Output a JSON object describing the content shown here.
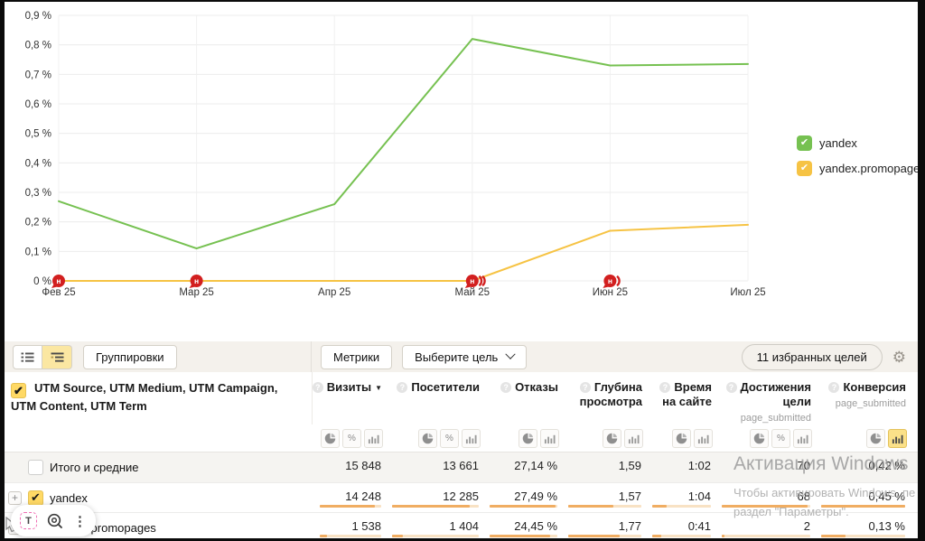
{
  "chart_data": {
    "type": "line",
    "x_labels": [
      "Фев 25",
      "Мар 25",
      "Апр 25",
      "Май 25",
      "Июн 25",
      "Июл 25"
    ],
    "y_ticks": [
      "0,9 %",
      "0,8 %",
      "0,7 %",
      "0,6 %",
      "0,5 %",
      "0,4 %",
      "0,3 %",
      "0,2 %",
      "0,1 %",
      "0 %"
    ],
    "ylim": [
      0,
      0.9
    ],
    "unit": "%",
    "grid": true,
    "legend_position": "right",
    "series": [
      {
        "name": "yandex",
        "color": "#76c151",
        "values": [
          0.27,
          0.11,
          0.26,
          0.82,
          0.73,
          0.735
        ]
      },
      {
        "name": "yandex.promopages",
        "color": "#f6c344",
        "values": [
          0,
          0,
          0,
          0,
          0.17,
          0.19
        ]
      }
    ],
    "annotation_glyph": "н",
    "annotation_color": "#d21f1f",
    "annotations": [
      {
        "x_label": "Фев 25",
        "x_index": 0,
        "bubbles": 1
      },
      {
        "x_label": "Мар 25",
        "x_index": 1,
        "bubbles": 1
      },
      {
        "x_label": "Май 25",
        "x_index": 3,
        "bubbles": 3
      },
      {
        "x_label": "Июн 25",
        "x_index": 4,
        "bubbles": 2
      }
    ]
  },
  "toolbar": {
    "groupings": "Группировки",
    "metrics": "Метрики",
    "goal_select": "Выберите цель",
    "favorite_goals": "11 избранных целей"
  },
  "table": {
    "row_header": "UTM Source, UTM Medium, UTM Campaign, UTM Content, UTM Term",
    "columns": [
      {
        "title": "Визиты",
        "sorted": "desc",
        "icons": [
          "pie",
          "percent",
          "bars"
        ]
      },
      {
        "title": "Посетители",
        "icons": [
          "pie",
          "percent",
          "bars"
        ]
      },
      {
        "title": "Отказы",
        "icons": [
          "pie",
          "bars"
        ]
      },
      {
        "title": "Глубина просмотра",
        "icons": [
          "pie",
          "bars"
        ]
      },
      {
        "title": "Время на сайте",
        "icons": [
          "pie",
          "bars"
        ]
      },
      {
        "title": "Достижения цели",
        "sub": "page_submitted",
        "icons": [
          "pie",
          "percent",
          "bars"
        ]
      },
      {
        "title": "Конверсия",
        "sub": "page_submitted",
        "icons": [
          "pie",
          "bars"
        ],
        "active_icon": "bars"
      }
    ],
    "rows": [
      {
        "label": "Итого и средние",
        "checked": false,
        "expandable": false,
        "total": true,
        "values": [
          "15 848",
          "13 661",
          "27,14 %",
          "1,59",
          "1:02",
          "70",
          "0,42 %"
        ],
        "bar_fill": null
      },
      {
        "label": "yandex",
        "checked": true,
        "expandable": true,
        "total": false,
        "values": [
          "14 248",
          "12 285",
          "27,49 %",
          "1,57",
          "1:04",
          "68",
          "0,45 %"
        ],
        "bar_fill": [
          90,
          90,
          97,
          62,
          25,
          97,
          100
        ]
      },
      {
        "label": "yandex.promopages",
        "checked": true,
        "expandable": true,
        "total": false,
        "values": [
          "1 538",
          "1 404",
          "24,45 %",
          "1,77",
          "0:41",
          "2",
          "0,13 %"
        ],
        "bar_fill": [
          12,
          12,
          89,
          70,
          15,
          3,
          29
        ]
      }
    ],
    "bar_color": "#f0ad62",
    "bar_track_color": "#f8e2c4"
  },
  "icons": {
    "check": "✔",
    "sort_desc": "▼",
    "percent": "%",
    "question": "?",
    "gear": "⚙",
    "menu_dots": "⋮",
    "translate": "T",
    "expand_plus": "+"
  },
  "watermark": {
    "line1": "Активация Windows",
    "line2": "Чтобы активировать Windows, пе",
    "line3": "раздел \"Параметры\"."
  }
}
